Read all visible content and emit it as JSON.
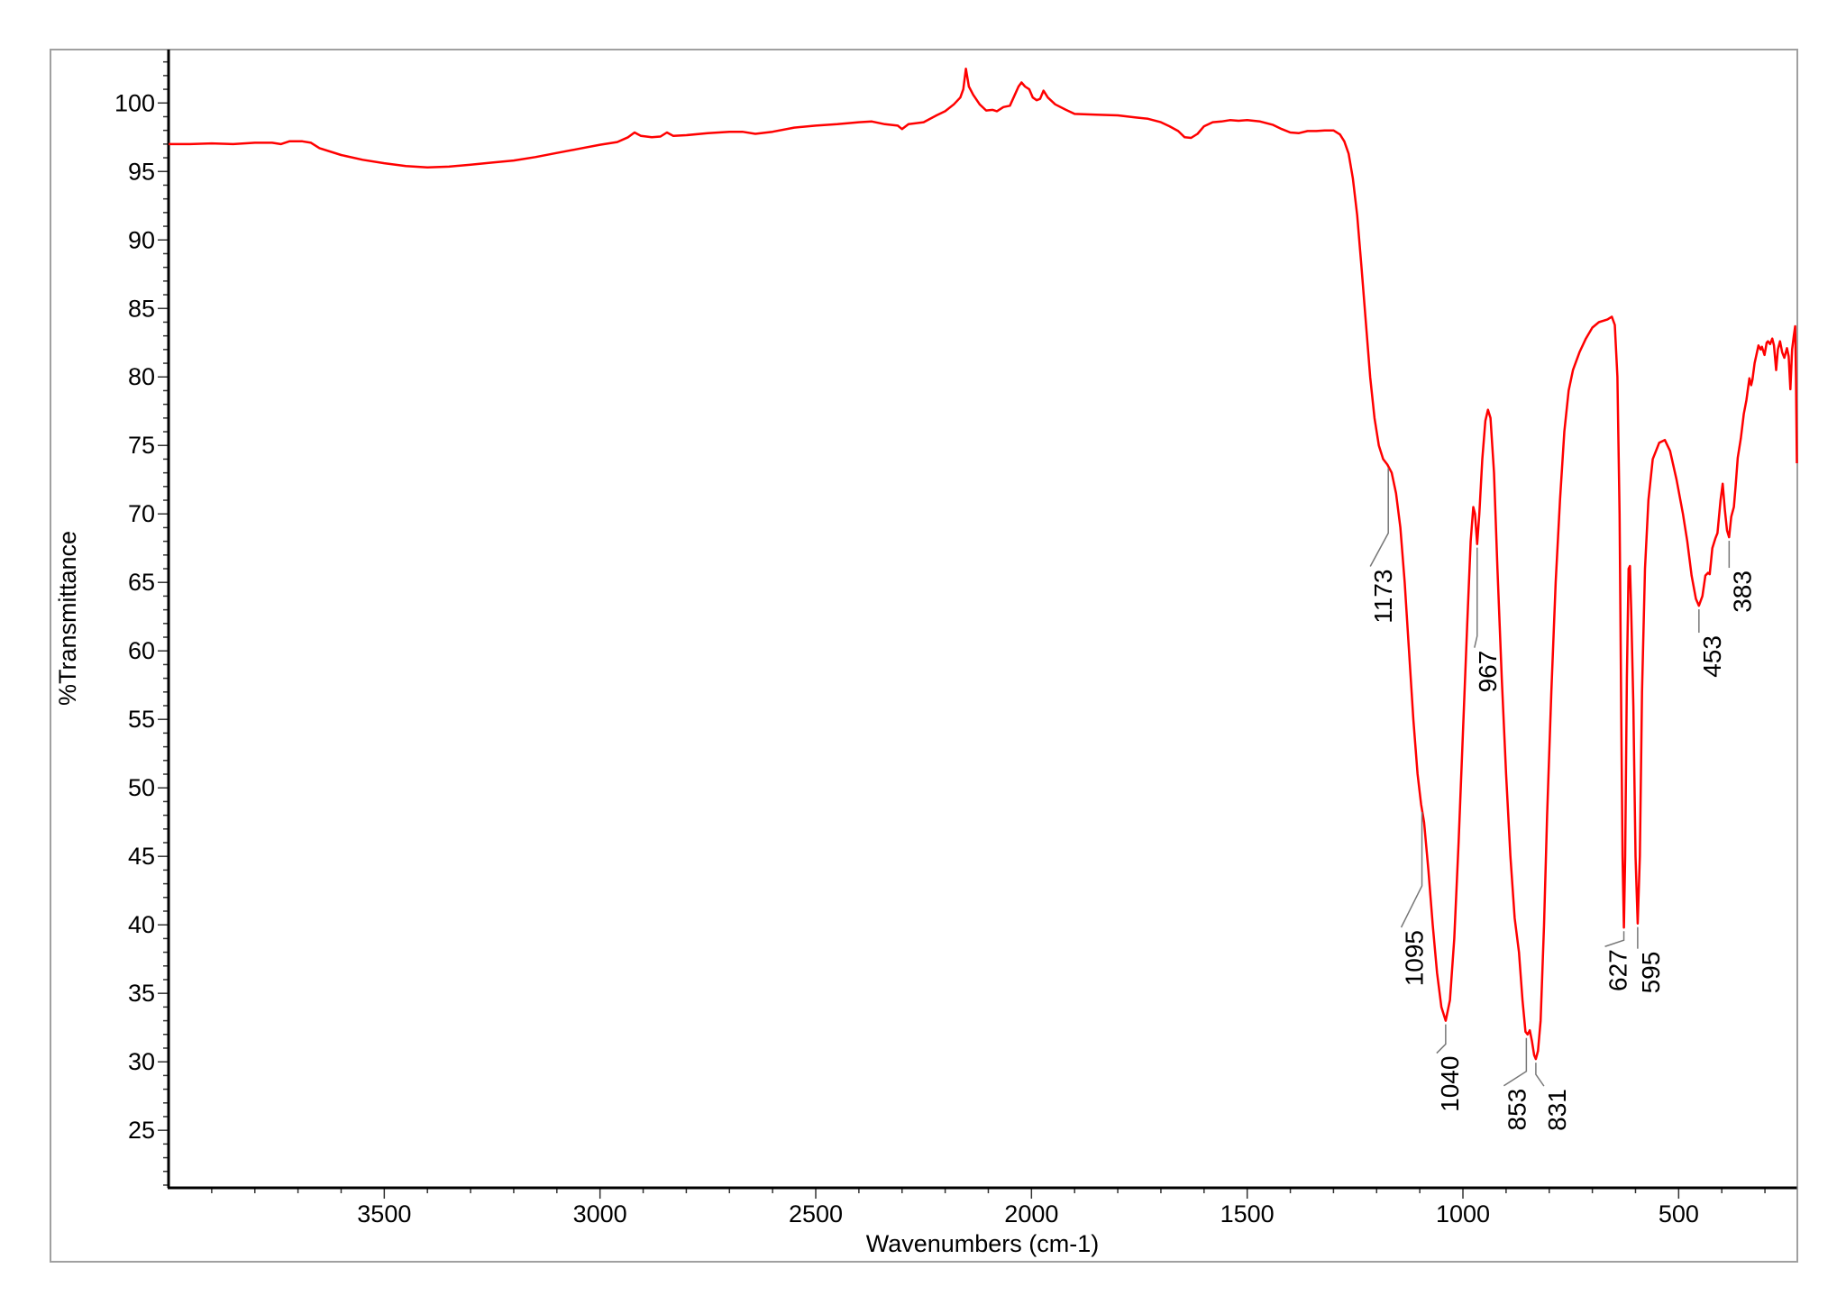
{
  "chart_data": {
    "type": "line",
    "title": "",
    "xlabel": "Wavenumbers (cm-1)",
    "ylabel": "%Transmittance",
    "xlim": [
      4000,
      226
    ],
    "ylim": [
      20.8,
      103.9
    ],
    "x_reversed": true,
    "grid": false,
    "legend": "none",
    "x_ticks": [
      3500,
      3000,
      2500,
      2000,
      1500,
      1000,
      500
    ],
    "x_tick_labels": [
      "3500",
      "3000",
      "2500",
      "2000",
      "1500",
      "1000",
      "500"
    ],
    "y_ticks": [
      25,
      30,
      35,
      40,
      45,
      50,
      55,
      60,
      65,
      70,
      75,
      80,
      85,
      90,
      95,
      100
    ],
    "y_tick_labels": [
      "25",
      "30",
      "35",
      "40",
      "45",
      "50",
      "55",
      "60",
      "65",
      "70",
      "75",
      "80",
      "85",
      "90",
      "95",
      "100"
    ],
    "colors": {
      "series": "#ff0000",
      "axes": "#000000",
      "frame": "#a0a0a0",
      "annotation_line": "#777777"
    },
    "series": [
      {
        "points": [
          [
            4000,
            97.0
          ],
          [
            3950,
            97.0
          ],
          [
            3900,
            97.05
          ],
          [
            3850,
            97.0
          ],
          [
            3800,
            97.1
          ],
          [
            3760,
            97.1
          ],
          [
            3740,
            97.0
          ],
          [
            3720,
            97.2
          ],
          [
            3690,
            97.2
          ],
          [
            3670,
            97.1
          ],
          [
            3650,
            96.7
          ],
          [
            3600,
            96.2
          ],
          [
            3550,
            95.85
          ],
          [
            3500,
            95.6
          ],
          [
            3450,
            95.4
          ],
          [
            3400,
            95.3
          ],
          [
            3350,
            95.35
          ],
          [
            3300,
            95.5
          ],
          [
            3250,
            95.65
          ],
          [
            3200,
            95.8
          ],
          [
            3150,
            96.05
          ],
          [
            3100,
            96.35
          ],
          [
            3050,
            96.65
          ],
          [
            3000,
            96.95
          ],
          [
            2960,
            97.15
          ],
          [
            2935,
            97.5
          ],
          [
            2920,
            97.85
          ],
          [
            2905,
            97.6
          ],
          [
            2880,
            97.5
          ],
          [
            2860,
            97.55
          ],
          [
            2845,
            97.85
          ],
          [
            2830,
            97.6
          ],
          [
            2800,
            97.65
          ],
          [
            2750,
            97.8
          ],
          [
            2700,
            97.9
          ],
          [
            2670,
            97.9
          ],
          [
            2640,
            97.75
          ],
          [
            2600,
            97.9
          ],
          [
            2550,
            98.2
          ],
          [
            2500,
            98.35
          ],
          [
            2450,
            98.45
          ],
          [
            2400,
            98.6
          ],
          [
            2370,
            98.65
          ],
          [
            2340,
            98.45
          ],
          [
            2310,
            98.35
          ],
          [
            2300,
            98.1
          ],
          [
            2285,
            98.45
          ],
          [
            2250,
            98.6
          ],
          [
            2220,
            99.1
          ],
          [
            2200,
            99.4
          ],
          [
            2180,
            99.9
          ],
          [
            2165,
            100.4
          ],
          [
            2158,
            101.0
          ],
          [
            2152,
            102.5
          ],
          [
            2145,
            101.2
          ],
          [
            2135,
            100.6
          ],
          [
            2120,
            99.9
          ],
          [
            2105,
            99.45
          ],
          [
            2090,
            99.5
          ],
          [
            2080,
            99.4
          ],
          [
            2065,
            99.7
          ],
          [
            2050,
            99.8
          ],
          [
            2040,
            100.5
          ],
          [
            2030,
            101.2
          ],
          [
            2023,
            101.5
          ],
          [
            2015,
            101.2
          ],
          [
            2005,
            101.0
          ],
          [
            1997,
            100.4
          ],
          [
            1988,
            100.2
          ],
          [
            1980,
            100.3
          ],
          [
            1972,
            100.9
          ],
          [
            1962,
            100.4
          ],
          [
            1945,
            99.9
          ],
          [
            1920,
            99.5
          ],
          [
            1900,
            99.2
          ],
          [
            1850,
            99.15
          ],
          [
            1800,
            99.1
          ],
          [
            1760,
            98.95
          ],
          [
            1730,
            98.85
          ],
          [
            1700,
            98.6
          ],
          [
            1680,
            98.3
          ],
          [
            1660,
            97.95
          ],
          [
            1645,
            97.5
          ],
          [
            1630,
            97.45
          ],
          [
            1615,
            97.75
          ],
          [
            1600,
            98.3
          ],
          [
            1580,
            98.6
          ],
          [
            1560,
            98.65
          ],
          [
            1540,
            98.75
          ],
          [
            1520,
            98.7
          ],
          [
            1500,
            98.75
          ],
          [
            1470,
            98.65
          ],
          [
            1440,
            98.4
          ],
          [
            1420,
            98.1
          ],
          [
            1400,
            97.85
          ],
          [
            1380,
            97.8
          ],
          [
            1360,
            97.95
          ],
          [
            1340,
            97.95
          ],
          [
            1320,
            98.0
          ],
          [
            1300,
            98.0
          ],
          [
            1285,
            97.7
          ],
          [
            1275,
            97.2
          ],
          [
            1265,
            96.3
          ],
          [
            1255,
            94.5
          ],
          [
            1245,
            91.8
          ],
          [
            1235,
            88.0
          ],
          [
            1225,
            84.0
          ],
          [
            1215,
            80.0
          ],
          [
            1205,
            77.0
          ],
          [
            1195,
            75.0
          ],
          [
            1185,
            74.0
          ],
          [
            1175,
            73.6
          ],
          [
            1165,
            73.0
          ],
          [
            1155,
            71.5
          ],
          [
            1145,
            69.0
          ],
          [
            1135,
            65.0
          ],
          [
            1125,
            60.0
          ],
          [
            1115,
            55.0
          ],
          [
            1105,
            51.0
          ],
          [
            1097,
            48.8
          ],
          [
            1090,
            47.5
          ],
          [
            1080,
            44.0
          ],
          [
            1070,
            40.0
          ],
          [
            1060,
            36.5
          ],
          [
            1050,
            34.0
          ],
          [
            1040,
            33.0
          ],
          [
            1030,
            34.5
          ],
          [
            1020,
            39.0
          ],
          [
            1010,
            46.0
          ],
          [
            1000,
            54.0
          ],
          [
            990,
            62.0
          ],
          [
            982,
            68.0
          ],
          [
            976,
            70.5
          ],
          [
            972,
            70.0
          ],
          [
            967,
            67.8
          ],
          [
            962,
            70.0
          ],
          [
            955,
            74.0
          ],
          [
            948,
            76.8
          ],
          [
            942,
            77.6
          ],
          [
            936,
            77.0
          ],
          [
            928,
            73.0
          ],
          [
            920,
            66.0
          ],
          [
            910,
            58.0
          ],
          [
            900,
            51.0
          ],
          [
            890,
            45.0
          ],
          [
            880,
            40.5
          ],
          [
            870,
            38.0
          ],
          [
            862,
            34.5
          ],
          [
            855,
            32.2
          ],
          [
            850,
            32.0
          ],
          [
            845,
            32.3
          ],
          [
            840,
            31.5
          ],
          [
            835,
            30.5
          ],
          [
            831,
            30.2
          ],
          [
            826,
            30.8
          ],
          [
            820,
            33.0
          ],
          [
            812,
            40.0
          ],
          [
            805,
            48.0
          ],
          [
            795,
            57.0
          ],
          [
            785,
            65.0
          ],
          [
            775,
            71.0
          ],
          [
            765,
            76.0
          ],
          [
            755,
            79.0
          ],
          [
            745,
            80.5
          ],
          [
            730,
            81.8
          ],
          [
            715,
            82.8
          ],
          [
            700,
            83.6
          ],
          [
            685,
            84.0
          ],
          [
            665,
            84.2
          ],
          [
            655,
            84.4
          ],
          [
            648,
            83.8
          ],
          [
            642,
            80.0
          ],
          [
            637,
            70.0
          ],
          [
            633,
            55.0
          ],
          [
            630,
            45.0
          ],
          [
            627,
            39.8
          ],
          [
            624,
            45.0
          ],
          [
            620,
            58.0
          ],
          [
            616,
            66.0
          ],
          [
            613,
            66.2
          ],
          [
            610,
            63.0
          ],
          [
            605,
            56.0
          ],
          [
            600,
            45.0
          ],
          [
            595,
            40.1
          ],
          [
            590,
            45.0
          ],
          [
            585,
            57.0
          ],
          [
            578,
            66.0
          ],
          [
            570,
            71.0
          ],
          [
            560,
            74.0
          ],
          [
            545,
            75.2
          ],
          [
            532,
            75.4
          ],
          [
            520,
            74.6
          ],
          [
            505,
            72.5
          ],
          [
            490,
            70.0
          ],
          [
            480,
            68.0
          ],
          [
            470,
            65.5
          ],
          [
            460,
            63.8
          ],
          [
            453,
            63.3
          ],
          [
            445,
            64.0
          ],
          [
            438,
            65.5
          ],
          [
            432,
            65.7
          ],
          [
            428,
            65.6
          ],
          [
            422,
            67.5
          ],
          [
            415,
            68.2
          ],
          [
            410,
            68.6
          ],
          [
            403,
            71.0
          ],
          [
            398,
            72.2
          ],
          [
            393,
            70.3
          ],
          [
            388,
            68.8
          ],
          [
            383,
            68.3
          ],
          [
            378,
            69.8
          ],
          [
            372,
            70.5
          ],
          [
            368,
            72.0
          ],
          [
            363,
            74.1
          ],
          [
            356,
            75.5
          ],
          [
            349,
            77.3
          ],
          [
            343,
            78.3
          ],
          [
            336,
            79.9
          ],
          [
            332,
            79.4
          ],
          [
            329,
            79.8
          ],
          [
            324,
            81.0
          ],
          [
            315,
            82.3
          ],
          [
            310,
            82.0
          ],
          [
            307,
            82.2
          ],
          [
            301,
            81.6
          ],
          [
            296,
            82.5
          ],
          [
            293,
            82.6
          ],
          [
            288,
            82.4
          ],
          [
            283,
            82.8
          ],
          [
            279,
            82.3
          ],
          [
            274,
            80.5
          ],
          [
            270,
            82.0
          ],
          [
            265,
            82.6
          ],
          [
            260,
            81.8
          ],
          [
            255,
            81.4
          ],
          [
            249,
            82.1
          ],
          [
            245,
            81.5
          ],
          [
            241,
            79.1
          ],
          [
            237,
            82.0
          ],
          [
            233,
            83.0
          ],
          [
            230,
            83.7
          ],
          [
            228,
            80.0
          ],
          [
            226,
            73.7
          ]
        ]
      }
    ],
    "annotations": [
      {
        "x": 1173,
        "y": 73.6,
        "label": "1173"
      },
      {
        "x": 1095,
        "y": 48.5,
        "label": "1095"
      },
      {
        "x": 1040,
        "y": 33.0,
        "label": "1040"
      },
      {
        "x": 967,
        "y": 67.8,
        "label": "967"
      },
      {
        "x": 853,
        "y": 32.0,
        "label": "853"
      },
      {
        "x": 831,
        "y": 30.2,
        "label": "831"
      },
      {
        "x": 627,
        "y": 39.8,
        "label": "627"
      },
      {
        "x": 595,
        "y": 40.1,
        "label": "595"
      },
      {
        "x": 453,
        "y": 63.3,
        "label": "453"
      },
      {
        "x": 383,
        "y": 68.3,
        "label": "383"
      }
    ]
  }
}
